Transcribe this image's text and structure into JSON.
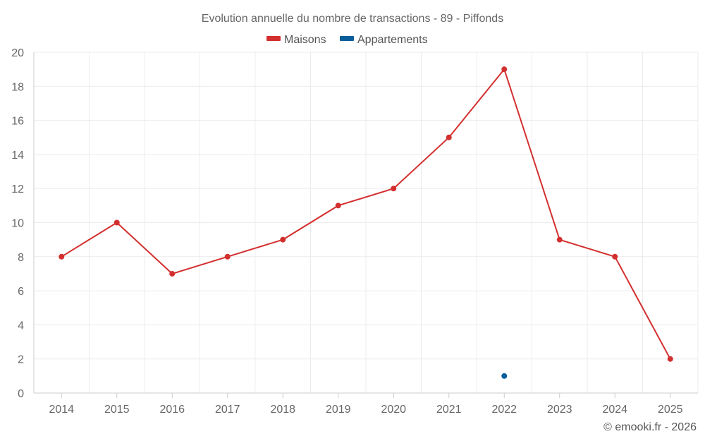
{
  "chart_data": {
    "type": "line",
    "title": "Evolution annuelle du nombre de transactions - 89 - Piffonds",
    "categories": [
      "2014",
      "2015",
      "2016",
      "2017",
      "2018",
      "2019",
      "2020",
      "2021",
      "2022",
      "2023",
      "2024",
      "2025"
    ],
    "series": [
      {
        "name": "Maisons",
        "color": "#d32f2f",
        "values": [
          8,
          10,
          7,
          8,
          9,
          11,
          12,
          15,
          19,
          9,
          8,
          2
        ]
      },
      {
        "name": "Appartements",
        "color": "#0a5e9c",
        "values": [
          null,
          null,
          null,
          null,
          null,
          null,
          null,
          null,
          1,
          null,
          null,
          null
        ]
      }
    ],
    "ylim": [
      0,
      20
    ],
    "yticks": [
      0,
      2,
      4,
      6,
      8,
      10,
      12,
      14,
      16,
      18,
      20
    ],
    "xlabel": "",
    "ylabel": "",
    "grid": true,
    "legend": "top-center"
  },
  "credit": "© emooki.fr - 2026"
}
